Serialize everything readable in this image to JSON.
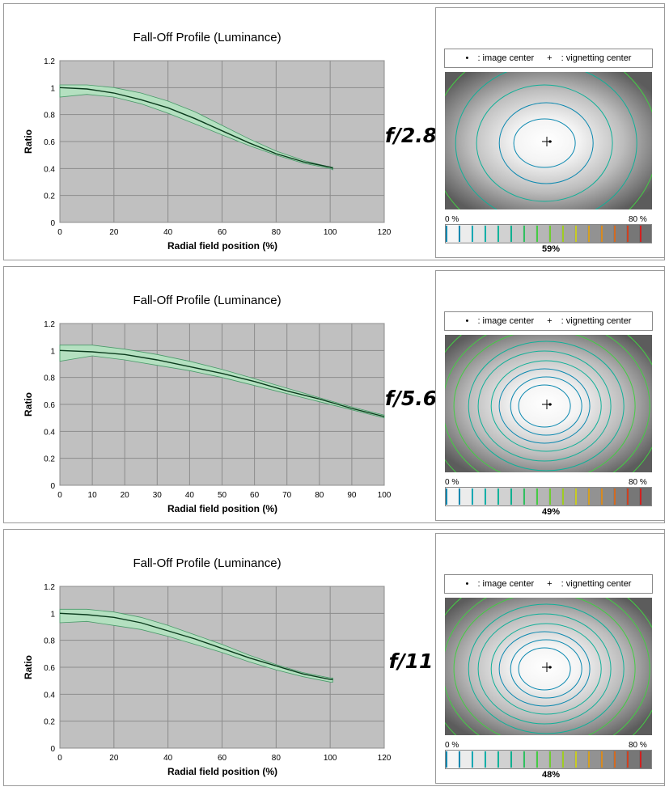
{
  "panels": [
    {
      "fstop": "f/2.8",
      "vignetting_percent": "59%",
      "chart_data": {
        "type": "line",
        "title": "Fall-Off Profile (Luminance)",
        "xlabel": "Radial field position (%)",
        "ylabel": "Ratio",
        "xlim": [
          0,
          120
        ],
        "ylim": [
          0,
          1.2
        ],
        "xticks": [
          0,
          20,
          40,
          60,
          80,
          100,
          120
        ],
        "yticks": [
          0,
          0.2,
          0.4,
          0.6,
          0.8,
          1,
          1.2
        ],
        "grid": true,
        "series": [
          {
            "x": [
              0,
              10,
              20,
              30,
              40,
              50,
              60,
              70,
              80,
              90,
              100,
              101
            ],
            "values": [
              1.0,
              0.99,
              0.96,
              0.91,
              0.85,
              0.77,
              0.68,
              0.59,
              0.51,
              0.45,
              0.41,
              0.4
            ]
          }
        ],
        "band": {
          "x": [
            0,
            10,
            20,
            30,
            40,
            50,
            60,
            70,
            80,
            90,
            100,
            101
          ],
          "upper": [
            1.02,
            1.02,
            1.0,
            0.96,
            0.9,
            0.82,
            0.72,
            0.62,
            0.53,
            0.46,
            0.41,
            0.41
          ],
          "lower": [
            0.93,
            0.95,
            0.93,
            0.88,
            0.81,
            0.73,
            0.65,
            0.57,
            0.5,
            0.44,
            0.4,
            0.39
          ]
        }
      }
    },
    {
      "fstop": "f/5.6",
      "vignetting_percent": "49%",
      "chart_data": {
        "type": "line",
        "title": "Fall-Off Profile (Luminance)",
        "xlabel": "Radial field position (%)",
        "ylabel": "Ratio",
        "xlim": [
          0,
          100
        ],
        "ylim": [
          0,
          1.2
        ],
        "xticks": [
          0,
          10,
          20,
          30,
          40,
          50,
          60,
          70,
          80,
          90,
          100
        ],
        "yticks": [
          0,
          0.2,
          0.4,
          0.6,
          0.8,
          1,
          1.2
        ],
        "grid": true,
        "series": [
          {
            "x": [
              0,
              10,
              20,
              30,
              40,
              50,
              60,
              70,
              80,
              90,
              100
            ],
            "values": [
              1.0,
              0.99,
              0.97,
              0.93,
              0.88,
              0.83,
              0.77,
              0.7,
              0.64,
              0.57,
              0.51
            ]
          }
        ],
        "band": {
          "x": [
            0,
            10,
            20,
            30,
            40,
            50,
            60,
            70,
            80,
            90,
            100
          ],
          "upper": [
            1.04,
            1.04,
            1.01,
            0.97,
            0.92,
            0.86,
            0.79,
            0.72,
            0.65,
            0.58,
            0.52
          ],
          "lower": [
            0.92,
            0.96,
            0.93,
            0.89,
            0.85,
            0.8,
            0.74,
            0.68,
            0.62,
            0.56,
            0.5
          ]
        }
      }
    },
    {
      "fstop": "f/11",
      "vignetting_percent": "48%",
      "chart_data": {
        "type": "line",
        "title": "Fall-Off Profile (Luminance)",
        "xlabel": "Radial field position (%)",
        "ylabel": "Ratio",
        "xlim": [
          0,
          120
        ],
        "ylim": [
          0,
          1.2
        ],
        "xticks": [
          0,
          20,
          40,
          60,
          80,
          100,
          120
        ],
        "yticks": [
          0,
          0.2,
          0.4,
          0.6,
          0.8,
          1,
          1.2
        ],
        "grid": true,
        "series": [
          {
            "x": [
              0,
              10,
              20,
              30,
              40,
              50,
              60,
              70,
              80,
              90,
              100,
              101
            ],
            "values": [
              1.0,
              0.99,
              0.97,
              0.93,
              0.87,
              0.81,
              0.74,
              0.67,
              0.61,
              0.55,
              0.51,
              0.51
            ]
          }
        ],
        "band": {
          "x": [
            0,
            10,
            20,
            30,
            40,
            50,
            60,
            70,
            80,
            90,
            100,
            101
          ],
          "upper": [
            1.03,
            1.03,
            1.01,
            0.97,
            0.91,
            0.84,
            0.77,
            0.69,
            0.62,
            0.56,
            0.52,
            0.52
          ],
          "lower": [
            0.93,
            0.94,
            0.91,
            0.88,
            0.83,
            0.77,
            0.71,
            0.64,
            0.58,
            0.53,
            0.49,
            0.49
          ]
        }
      }
    }
  ],
  "legend": {
    "image_center_symbol": "•",
    "image_center": ": image center",
    "vignetting_center_symbol": "+",
    "vignetting_center": ": vignetting center"
  },
  "scale": {
    "min_label": "0 %",
    "max_label": "80 %"
  },
  "colors": {
    "plot_background": "#c0c0c0",
    "grid": "#8c8c8c",
    "band_fill": "#b4e0c0",
    "band_edge": "#4a9a6a",
    "mean_line": "#0a3a1c",
    "contour_blue": "#0a88b0",
    "contour_teal": "#10b098",
    "contour_green": "#44cc44",
    "contour_yellow": "#c8cc22"
  }
}
